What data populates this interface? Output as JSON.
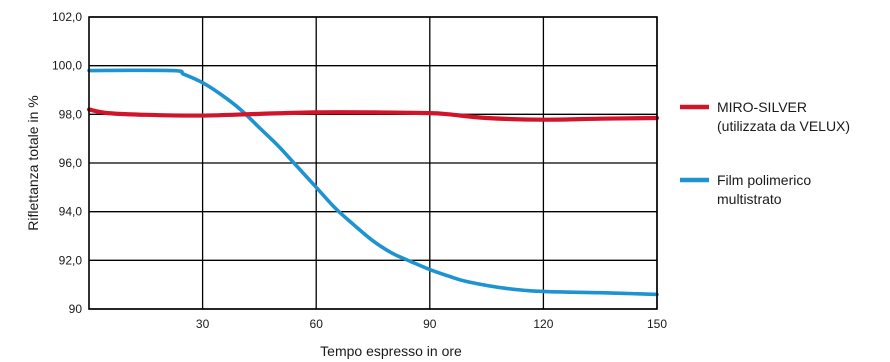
{
  "chart_data": {
    "type": "line",
    "title": "",
    "xlabel": "Tempo espresso in ore",
    "ylabel": "Riflettanza totale in %",
    "xlim": [
      0,
      150
    ],
    "ylim": [
      90,
      102
    ],
    "x_ticks": [
      30,
      60,
      90,
      120,
      150
    ],
    "y_ticks": [
      90,
      92,
      94,
      96,
      98,
      100,
      102
    ],
    "y_tick_labels": [
      "90",
      "92,0",
      "94,0",
      "96,0",
      "98,0",
      "100,0",
      "102,0"
    ],
    "x_tick_labels": [
      "30",
      "60",
      "90",
      "120",
      "150"
    ],
    "grid": true,
    "legend_position": "right",
    "series": [
      {
        "name_lines": [
          "MIRO-SILVER",
          "(utilizzata da VELUX)"
        ],
        "color": "#d2142b",
        "points": [
          [
            0,
            98.2
          ],
          [
            5,
            98.05
          ],
          [
            15,
            97.98
          ],
          [
            30,
            97.95
          ],
          [
            45,
            98.02
          ],
          [
            60,
            98.08
          ],
          [
            75,
            98.08
          ],
          [
            90,
            98.05
          ],
          [
            95,
            98.0
          ],
          [
            105,
            97.85
          ],
          [
            120,
            97.78
          ],
          [
            135,
            97.82
          ],
          [
            150,
            97.85
          ]
        ]
      },
      {
        "name_lines": [
          "Film polimerico",
          "multistrato"
        ],
        "color": "#1d93d2",
        "points": [
          [
            0,
            99.8
          ],
          [
            22,
            99.8
          ],
          [
            25,
            99.65
          ],
          [
            30,
            99.3
          ],
          [
            35,
            98.8
          ],
          [
            40,
            98.2
          ],
          [
            45,
            97.45
          ],
          [
            50,
            96.7
          ],
          [
            55,
            95.85
          ],
          [
            60,
            95.0
          ],
          [
            65,
            94.15
          ],
          [
            70,
            93.45
          ],
          [
            75,
            92.8
          ],
          [
            80,
            92.3
          ],
          [
            85,
            91.95
          ],
          [
            90,
            91.62
          ],
          [
            95,
            91.35
          ],
          [
            100,
            91.12
          ],
          [
            110,
            90.85
          ],
          [
            120,
            90.72
          ],
          [
            135,
            90.67
          ],
          [
            150,
            90.6
          ]
        ]
      }
    ]
  }
}
